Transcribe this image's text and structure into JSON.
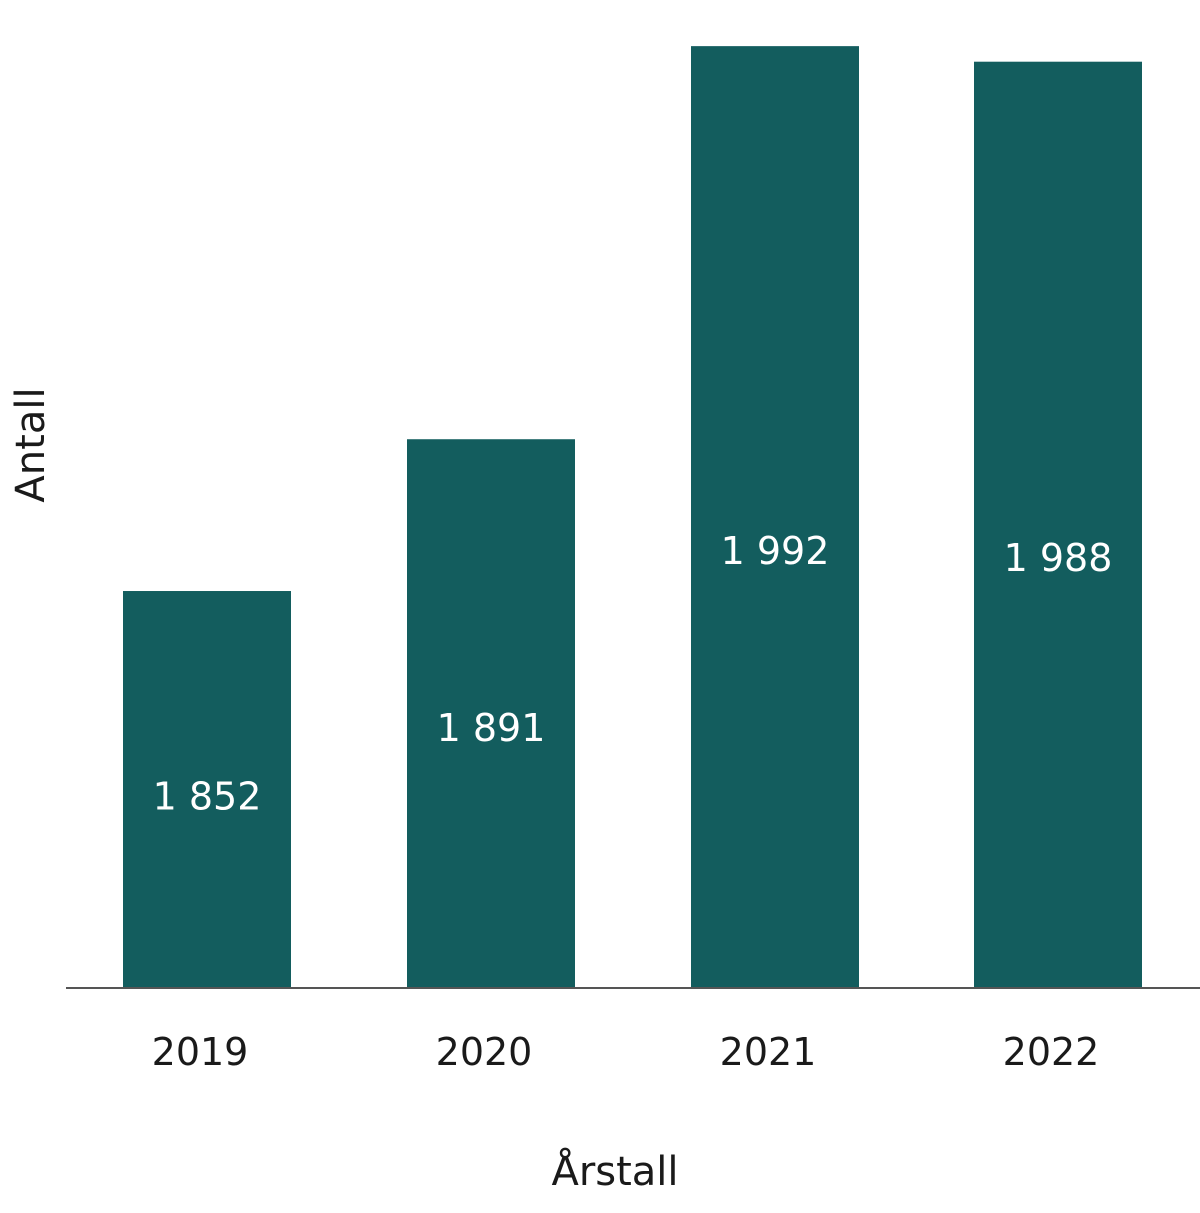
{
  "chart_data": {
    "type": "bar",
    "title": "",
    "xlabel": "Årstall",
    "ylabel": "Antall",
    "categories": [
      "2019",
      "2020",
      "2021",
      "2022"
    ],
    "values": [
      1852,
      1891,
      1992,
      1988
    ],
    "value_labels": [
      "1 852",
      "1 891",
      "1 992",
      "1 988"
    ],
    "ylim": [
      1750,
      2000
    ],
    "grid": false,
    "bar_color": "#135d5e",
    "axis_color": "#555555"
  }
}
